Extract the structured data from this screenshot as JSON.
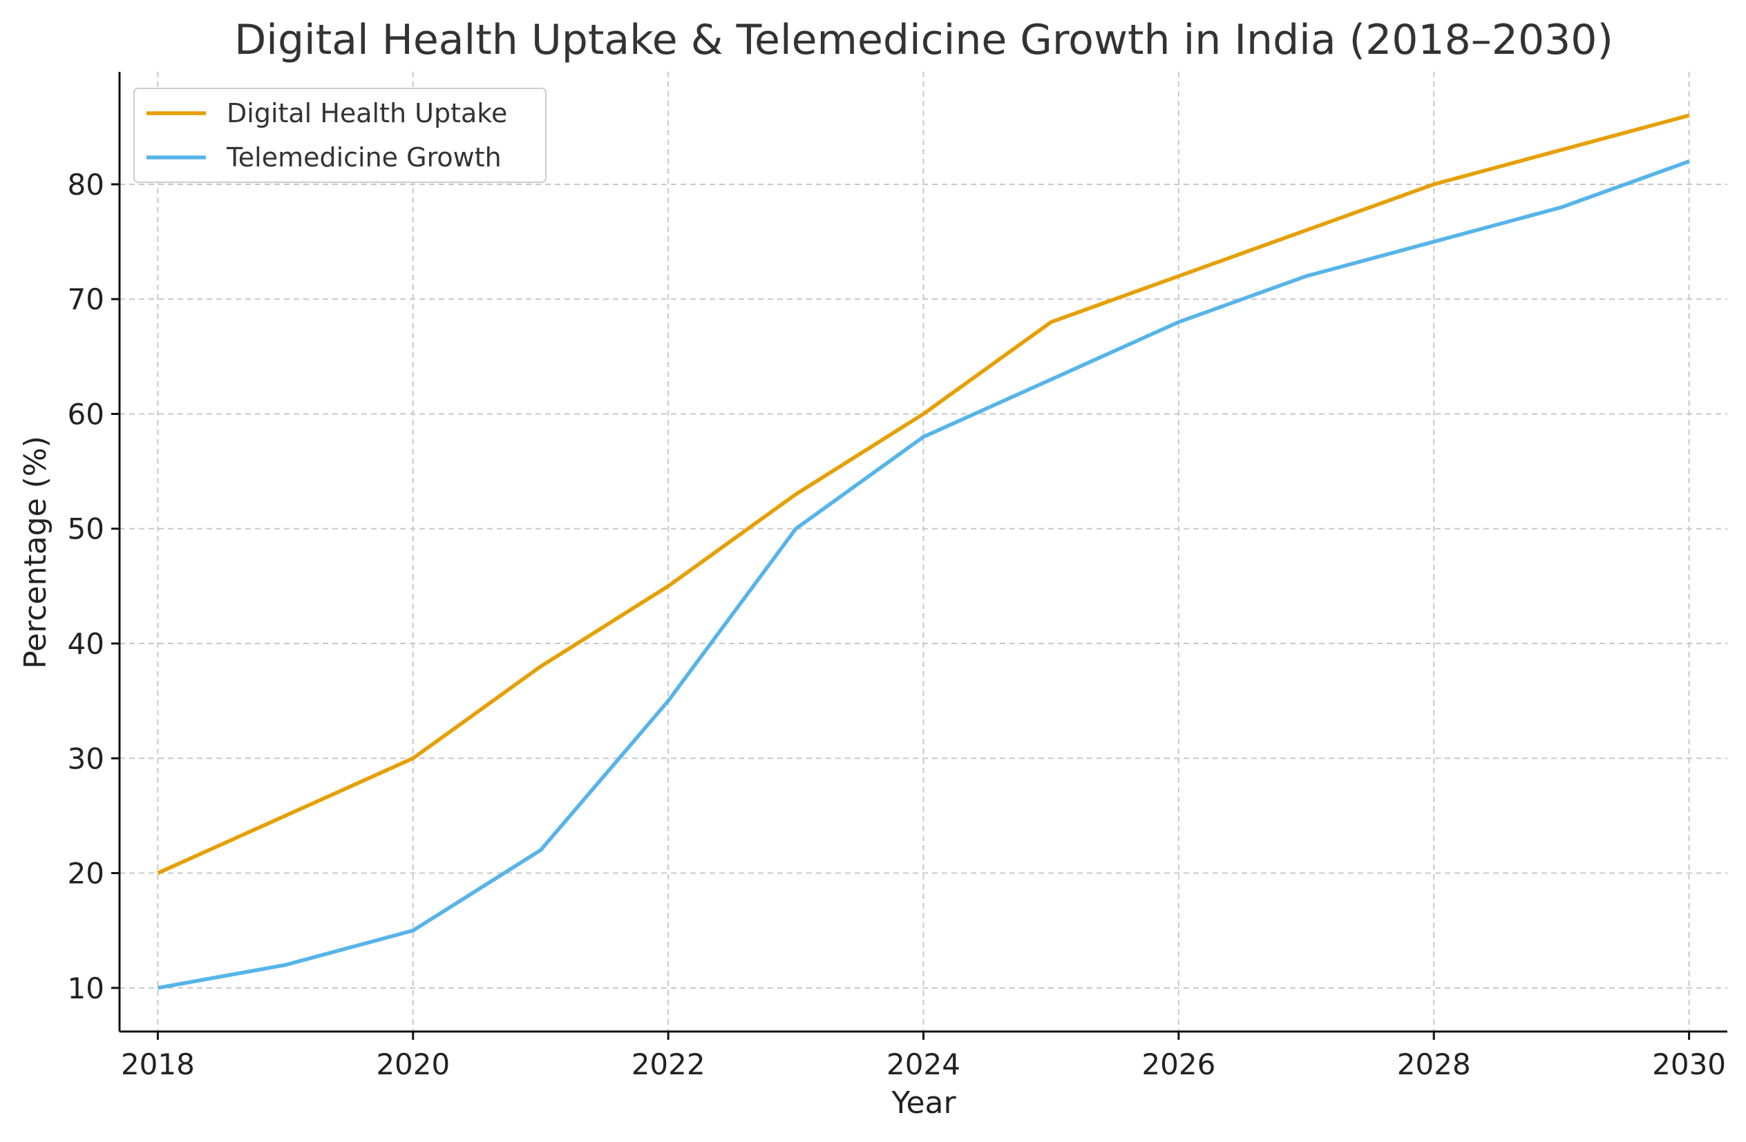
{
  "chart_data": {
    "type": "line",
    "title": "Digital Health Uptake & Telemedicine Growth in India (2018–2030)",
    "xlabel": "Year",
    "ylabel": "Percentage (%)",
    "x": [
      2018,
      2019,
      2020,
      2021,
      2022,
      2023,
      2024,
      2025,
      2026,
      2027,
      2028,
      2029,
      2030
    ],
    "xlim": [
      2017.7,
      2030.3
    ],
    "ylim": [
      6.2,
      89.8
    ],
    "x_ticks": [
      2018,
      2020,
      2022,
      2024,
      2026,
      2028,
      2030
    ],
    "y_ticks": [
      10,
      20,
      30,
      40,
      50,
      60,
      70,
      80
    ],
    "grid": true,
    "legend_position": "top-left",
    "series": [
      {
        "name": "Digital Health Uptake",
        "color": "#E69F00",
        "values": [
          20,
          25,
          30,
          38,
          45,
          53,
          60,
          68,
          72,
          76,
          80,
          83,
          86
        ]
      },
      {
        "name": "Telemedicine Growth",
        "color": "#56B4E9",
        "values": [
          10,
          12,
          15,
          22,
          35,
          50,
          58,
          63,
          68,
          72,
          75,
          78,
          82
        ]
      }
    ]
  }
}
